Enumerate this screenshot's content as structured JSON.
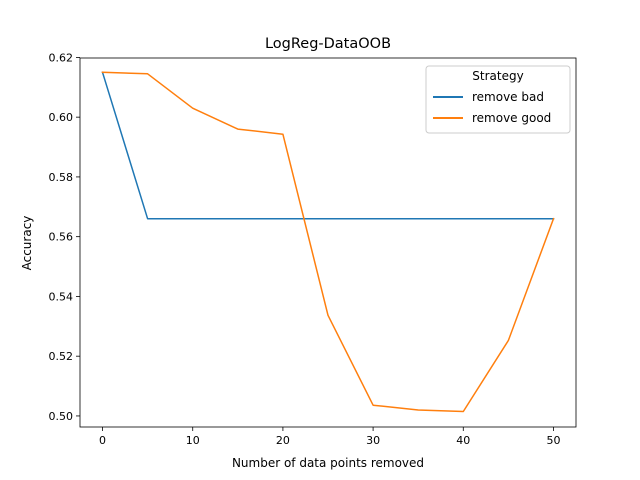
{
  "chart_data": {
    "type": "line",
    "title": "LogReg-DataOOB",
    "xlabel": "Number of data points removed",
    "ylabel": "Accuracy",
    "xlim": [
      -2.5,
      52.5
    ],
    "ylim": [
      0.4963,
      0.6198
    ],
    "xticks": [
      0,
      10,
      20,
      30,
      40,
      50
    ],
    "yticks": [
      0.5,
      0.52,
      0.54,
      0.56,
      0.58,
      0.6,
      0.62
    ],
    "ytick_format": 2,
    "grid": false,
    "legend": {
      "title": "Strategy",
      "placement": "top-right"
    },
    "x": [
      0,
      5,
      10,
      15,
      20,
      25,
      30,
      35,
      40,
      45,
      50
    ],
    "series": [
      {
        "name": "remove bad",
        "color": "#1f77b4",
        "values": [
          0.615,
          0.566,
          0.566,
          0.566,
          0.566,
          0.566,
          0.566,
          0.566,
          0.566,
          0.566,
          0.566
        ]
      },
      {
        "name": "remove good",
        "color": "#ff7f0e",
        "values": [
          0.615,
          0.6145,
          0.603,
          0.596,
          0.5943,
          0.5337,
          0.5036,
          0.502,
          0.5015,
          0.5253,
          0.566
        ]
      }
    ]
  }
}
